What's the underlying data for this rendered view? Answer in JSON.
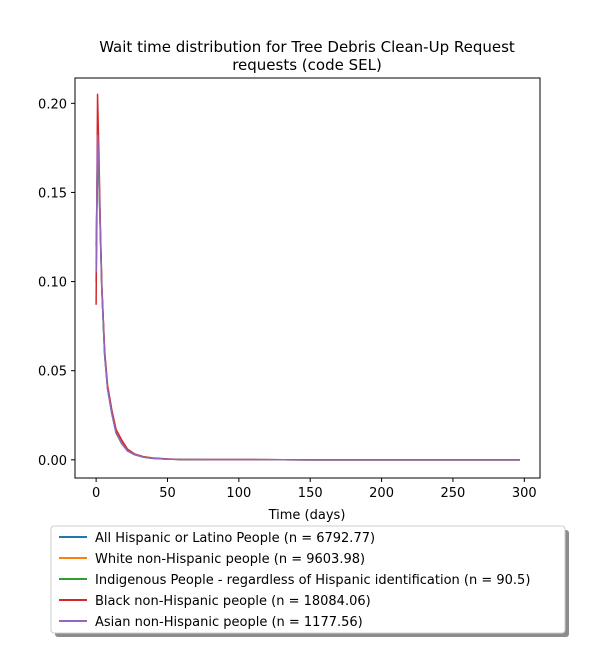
{
  "chart_data": {
    "type": "line",
    "title_lines": [
      "Wait time distribution  for Tree Debris Clean-Up Request",
      "requests (code SEL)"
    ],
    "xlabel": "Time (days)",
    "ylabel": "",
    "xlim": [
      -14.8,
      311
    ],
    "ylim": [
      -0.0102,
      0.2142
    ],
    "xticks": [
      0,
      50,
      100,
      150,
      200,
      250,
      300
    ],
    "yticks": [
      0.0,
      0.05,
      0.1,
      0.15,
      0.2
    ],
    "ytick_labels": [
      "0.00",
      "0.05",
      "0.10",
      "0.15",
      "0.20"
    ],
    "grid": false,
    "legend_position": "below",
    "series": [
      {
        "name": "All Hispanic or Latino People (n = 6792.77)",
        "color": "#1f77b4",
        "x": [
          0,
          1,
          2,
          3,
          4,
          6,
          8,
          11,
          14,
          18,
          22,
          27,
          33,
          40,
          50,
          60,
          80,
          100,
          150,
          200,
          250,
          297
        ],
        "y": [
          0.12,
          0.17,
          0.155,
          0.125,
          0.095,
          0.058,
          0.04,
          0.026,
          0.015,
          0.009,
          0.005,
          0.0028,
          0.0015,
          0.0008,
          0.0004,
          0.0002,
          0.0001,
          0.0001,
          0.0,
          0.0,
          0.0,
          0.0
        ]
      },
      {
        "name": "White non-Hispanic people (n = 9603.98)",
        "color": "#ff7f0e",
        "x": [
          0,
          1,
          2,
          3,
          4,
          6,
          8,
          11,
          14,
          18,
          22,
          27,
          33,
          40,
          50,
          60,
          80,
          100,
          150,
          200,
          250,
          297
        ],
        "y": [
          0.11,
          0.175,
          0.16,
          0.128,
          0.097,
          0.06,
          0.041,
          0.027,
          0.016,
          0.01,
          0.0055,
          0.003,
          0.0016,
          0.0009,
          0.0004,
          0.0002,
          0.0001,
          0.0001,
          0.0,
          0.0,
          0.0,
          0.0
        ]
      },
      {
        "name": "Indigenous People - regardless of Hispanic identification (n = 90.5)",
        "color": "#2ca02c",
        "x": [
          0,
          1,
          2,
          3,
          4,
          6,
          8,
          11,
          14,
          18,
          22,
          27,
          33,
          40,
          50,
          60,
          80,
          100,
          150,
          200,
          250,
          297
        ],
        "y": [
          0.1,
          0.165,
          0.158,
          0.126,
          0.096,
          0.059,
          0.04,
          0.026,
          0.015,
          0.009,
          0.005,
          0.003,
          0.0015,
          0.0008,
          0.0004,
          0.0002,
          0.0001,
          0.0001,
          0.0,
          0.0,
          0.0,
          0.0
        ]
      },
      {
        "name": "Black non-Hispanic people (n = 18084.06)",
        "color": "#d62728",
        "x": [
          0,
          1,
          2,
          3,
          4,
          6,
          8,
          11,
          14,
          18,
          22,
          27,
          33,
          40,
          50,
          60,
          80,
          100,
          150,
          200,
          250,
          297
        ],
        "y": [
          0.087,
          0.205,
          0.17,
          0.13,
          0.098,
          0.061,
          0.042,
          0.028,
          0.017,
          0.011,
          0.006,
          0.0033,
          0.0018,
          0.001,
          0.0005,
          0.0002,
          0.0001,
          0.0001,
          0.0,
          0.0,
          0.0,
          0.0
        ]
      },
      {
        "name": "Asian non-Hispanic people (n = 1177.56)",
        "color": "#9467bd",
        "x": [
          0,
          1,
          2,
          3,
          4,
          6,
          8,
          11,
          14,
          18,
          22,
          27,
          33,
          40,
          50,
          60,
          80,
          100,
          150,
          200,
          250,
          297
        ],
        "y": [
          0.105,
          0.182,
          0.163,
          0.127,
          0.096,
          0.059,
          0.04,
          0.026,
          0.015,
          0.009,
          0.005,
          0.003,
          0.0015,
          0.0008,
          0.0004,
          0.0002,
          0.0001,
          0.0001,
          0.0,
          0.0,
          0.0,
          0.0
        ]
      }
    ]
  }
}
